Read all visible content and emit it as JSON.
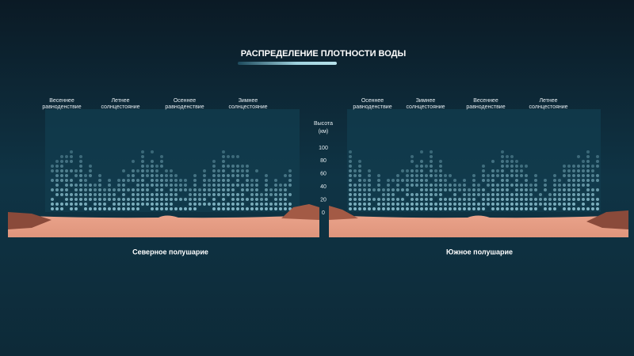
{
  "title": "РАСПРЕДЕЛЕНИЕ ПЛОТНОСТИ ВОДЫ",
  "northern": {
    "label": "Северное полушарие",
    "seasons": [
      [
        "Весеннее",
        "равноденствие"
      ],
      [
        "Летнее",
        "солнцестояние"
      ],
      [
        "Осеннее",
        "равноденствие"
      ],
      [
        "Зимнее",
        "солнцестояние"
      ]
    ]
  },
  "southern": {
    "label": "Южное полушарие",
    "seasons": [
      [
        "Осеннее",
        "равноденствие"
      ],
      [
        "Зимнее",
        "солнцестояние"
      ],
      [
        "Весеннее",
        "равноденствие"
      ],
      [
        "Летнее",
        "солнцестояние"
      ]
    ]
  },
  "altitude_axis": {
    "label": [
      "Высота",
      "(км)"
    ],
    "ticks": [
      0,
      20,
      40,
      60,
      80,
      100
    ]
  }
}
